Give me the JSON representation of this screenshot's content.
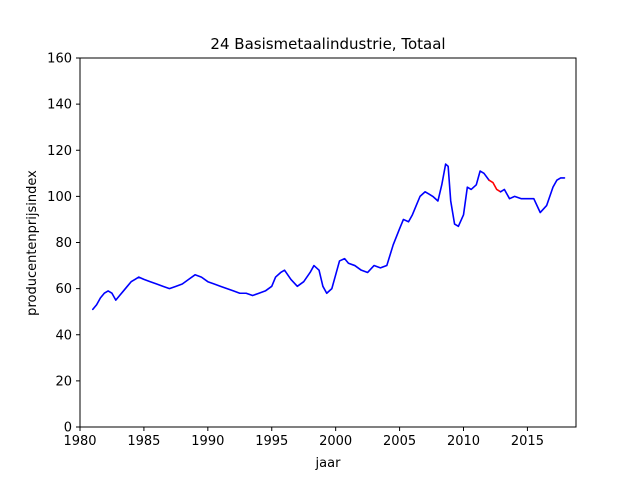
{
  "chart_data": {
    "type": "line",
    "title": "24 Basismetaalindustrie, Totaal",
    "xlabel": "jaar",
    "ylabel": "producentenprijsindex",
    "xlim": [
      1980,
      2018.8
    ],
    "ylim": [
      0,
      160
    ],
    "x_ticks": [
      1980,
      1985,
      1990,
      1995,
      2000,
      2005,
      2010,
      2015
    ],
    "y_ticks": [
      0,
      20,
      40,
      60,
      80,
      100,
      120,
      140,
      160
    ],
    "grid": false,
    "series": [
      {
        "color": "#0000ff",
        "x": [
          1981.0,
          1981.3,
          1981.6,
          1981.9,
          1982.2,
          1982.5,
          1982.8,
          1983.1,
          1983.4,
          1983.7,
          1984.0,
          1984.3,
          1984.6,
          1985.0,
          1985.5,
          1986.0,
          1986.5,
          1987.0,
          1987.5,
          1988.0,
          1988.5,
          1989.0,
          1989.5,
          1990.0,
          1990.5,
          1991.0,
          1991.5,
          1992.0,
          1992.5,
          1993.0,
          1993.5,
          1994.0,
          1994.5,
          1995.0,
          1995.3,
          1995.7,
          1996.0,
          1996.5,
          1997.0,
          1997.5,
          1998.0,
          1998.3,
          1998.7,
          1999.0,
          1999.3,
          1999.7,
          2000.0,
          2000.3,
          2000.7,
          2001.0,
          2001.5,
          2002.0,
          2002.5,
          2003.0,
          2003.5,
          2004.0,
          2004.5,
          2005.0,
          2005.3,
          2005.7,
          2006.0,
          2006.3,
          2006.6,
          2007.0,
          2007.3,
          2007.6,
          2008.0,
          2008.3,
          2008.6,
          2008.8,
          2009.0,
          2009.3,
          2009.6,
          2010.0,
          2010.3,
          2010.6,
          2011.0,
          2011.3,
          2011.6,
          2012.0
        ],
        "y": [
          51,
          53,
          56,
          58,
          59,
          58,
          55,
          57,
          59,
          61,
          63,
          64,
          65,
          64,
          63,
          62,
          61,
          60,
          61,
          62,
          64,
          66,
          65,
          63,
          62,
          61,
          60,
          59,
          58,
          58,
          57,
          58,
          59,
          61,
          65,
          67,
          68,
          64,
          61,
          63,
          67,
          70,
          68,
          61,
          58,
          60,
          66,
          72,
          73,
          71,
          70,
          68,
          67,
          70,
          69,
          70,
          79,
          86,
          90,
          89,
          92,
          96,
          100,
          102,
          101,
          100,
          98,
          105,
          114,
          113,
          98,
          88,
          87,
          92,
          104,
          103,
          105,
          111,
          110,
          107
        ]
      },
      {
        "color": "#ff0000",
        "x": [
          2012.0,
          2012.3,
          2012.6,
          2012.9
        ],
        "y": [
          107,
          106,
          103,
          102
        ]
      },
      {
        "color": "#0000ff",
        "x": [
          2012.9,
          2013.2,
          2013.6,
          2014.0,
          2014.5,
          2015.0,
          2015.5,
          2016.0,
          2016.5,
          2017.0,
          2017.3,
          2017.6,
          2017.9
        ],
        "y": [
          102,
          103,
          99,
          100,
          99,
          99,
          99,
          93,
          96,
          104,
          107,
          108,
          108
        ]
      }
    ]
  }
}
